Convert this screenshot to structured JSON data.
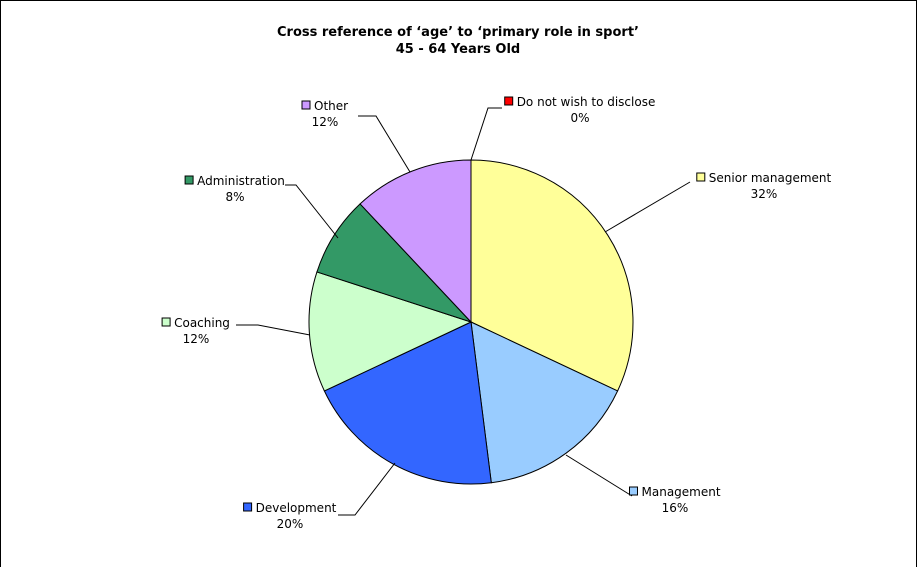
{
  "chart_data": {
    "type": "pie",
    "title": "Cross reference of ‘age’ to ‘primary role in sport’",
    "subtitle": "45 - 64 Years Old",
    "slices": [
      {
        "label": "Senior management",
        "value": 32,
        "value_label": "32%",
        "color": "#FFFF99"
      },
      {
        "label": "Management",
        "value": 16,
        "value_label": "16%",
        "color": "#99CCFF"
      },
      {
        "label": "Development",
        "value": 20,
        "value_label": "20%",
        "color": "#3366FF"
      },
      {
        "label": "Coaching",
        "value": 12,
        "value_label": "12%",
        "color": "#CCFFCC"
      },
      {
        "label": "Administration",
        "value": 8,
        "value_label": "8%",
        "color": "#339966"
      },
      {
        "label": "Other",
        "value": 12,
        "value_label": "12%",
        "color": "#CC99FF"
      },
      {
        "label": "Do not wish to disclose",
        "value": 0,
        "value_label": "0%",
        "color": "#FF0000"
      }
    ]
  }
}
